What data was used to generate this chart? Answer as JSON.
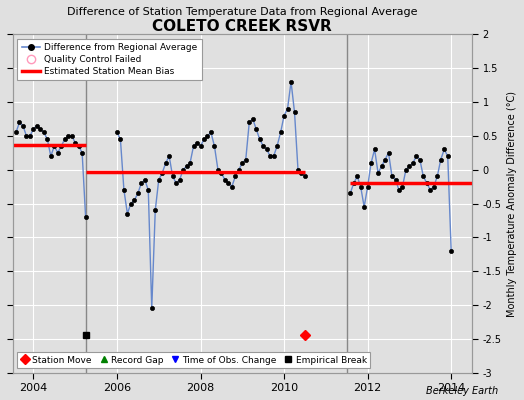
{
  "title": "COLETO CREEK RSVR",
  "subtitle": "Difference of Station Temperature Data from Regional Average",
  "ylabel": "Monthly Temperature Anomaly Difference (°C)",
  "xlabel_credit": "Berkeley Earth",
  "ylim": [
    -3,
    2
  ],
  "yticks": [
    -3,
    -2.5,
    -2,
    -1.5,
    -1,
    -0.5,
    0,
    0.5,
    1,
    1.5,
    2
  ],
  "xlim_start": 2003.5,
  "xlim_end": 2014.5,
  "xticks": [
    2004,
    2006,
    2008,
    2010,
    2012,
    2014
  ],
  "bg_color": "#e0e0e0",
  "plot_bg_color": "#e0e0e0",
  "grid_color": "white",
  "line_color": "#6688cc",
  "marker_color": "black",
  "bias_color": "red",
  "vertical_line_color": "#888888",
  "segment1_bias": 0.37,
  "segment2_bias": -0.03,
  "segment3_bias": -0.2,
  "empirical_break_x": 2005.25,
  "empirical_break_y": -2.45,
  "station_move_x": 2010.5,
  "station_move_y": -2.45,
  "break1_x": 2005.25,
  "break2_x": 2011.5,
  "gap_start": 2010.5,
  "gap_end": 2011.583,
  "time_points": [
    2003.583,
    2003.667,
    2003.75,
    2003.833,
    2003.917,
    2004.0,
    2004.083,
    2004.167,
    2004.25,
    2004.333,
    2004.417,
    2004.5,
    2004.583,
    2004.667,
    2004.75,
    2004.833,
    2004.917,
    2005.0,
    2005.083,
    2005.167,
    2005.25,
    2006.0,
    2006.083,
    2006.167,
    2006.25,
    2006.333,
    2006.417,
    2006.5,
    2006.583,
    2006.667,
    2006.75,
    2006.833,
    2006.917,
    2007.0,
    2007.083,
    2007.167,
    2007.25,
    2007.333,
    2007.417,
    2007.5,
    2007.583,
    2007.667,
    2007.75,
    2007.833,
    2007.917,
    2008.0,
    2008.083,
    2008.167,
    2008.25,
    2008.333,
    2008.417,
    2008.5,
    2008.583,
    2008.667,
    2008.75,
    2008.833,
    2008.917,
    2009.0,
    2009.083,
    2009.167,
    2009.25,
    2009.333,
    2009.417,
    2009.5,
    2009.583,
    2009.667,
    2009.75,
    2009.833,
    2009.917,
    2010.0,
    2010.083,
    2010.167,
    2010.25,
    2010.333,
    2010.417,
    2010.5,
    2011.583,
    2011.667,
    2011.75,
    2011.833,
    2011.917,
    2012.0,
    2012.083,
    2012.167,
    2012.25,
    2012.333,
    2012.417,
    2012.5,
    2012.583,
    2012.667,
    2012.75,
    2012.833,
    2012.917,
    2013.0,
    2013.083,
    2013.167,
    2013.25,
    2013.333,
    2013.417,
    2013.5,
    2013.583,
    2013.667,
    2013.75,
    2013.833,
    2013.917,
    2014.0
  ],
  "values": [
    0.55,
    0.7,
    0.65,
    0.5,
    0.5,
    0.6,
    0.65,
    0.6,
    0.55,
    0.45,
    0.2,
    0.35,
    0.25,
    0.35,
    0.45,
    0.5,
    0.5,
    0.4,
    0.35,
    0.25,
    -0.7,
    0.55,
    0.45,
    -0.3,
    -0.65,
    -0.5,
    -0.45,
    -0.35,
    -0.2,
    -0.15,
    -0.3,
    -2.05,
    -0.6,
    -0.15,
    -0.05,
    0.1,
    0.2,
    -0.1,
    -0.2,
    -0.15,
    0.0,
    0.05,
    0.1,
    0.35,
    0.4,
    0.35,
    0.45,
    0.5,
    0.55,
    0.35,
    0.0,
    -0.05,
    -0.15,
    -0.2,
    -0.25,
    -0.1,
    0.0,
    0.1,
    0.15,
    0.7,
    0.75,
    0.6,
    0.45,
    0.35,
    0.3,
    0.2,
    0.2,
    0.35,
    0.55,
    0.8,
    0.9,
    1.3,
    0.85,
    0.0,
    -0.05,
    -0.1,
    -0.35,
    -0.2,
    -0.1,
    -0.25,
    -0.55,
    -0.25,
    0.1,
    0.3,
    -0.05,
    0.05,
    0.15,
    0.25,
    -0.1,
    -0.15,
    -0.3,
    -0.25,
    0.0,
    0.05,
    0.1,
    0.2,
    0.15,
    -0.1,
    -0.2,
    -0.3,
    -0.25,
    -0.1,
    0.15,
    0.3,
    0.2,
    -1.2
  ]
}
